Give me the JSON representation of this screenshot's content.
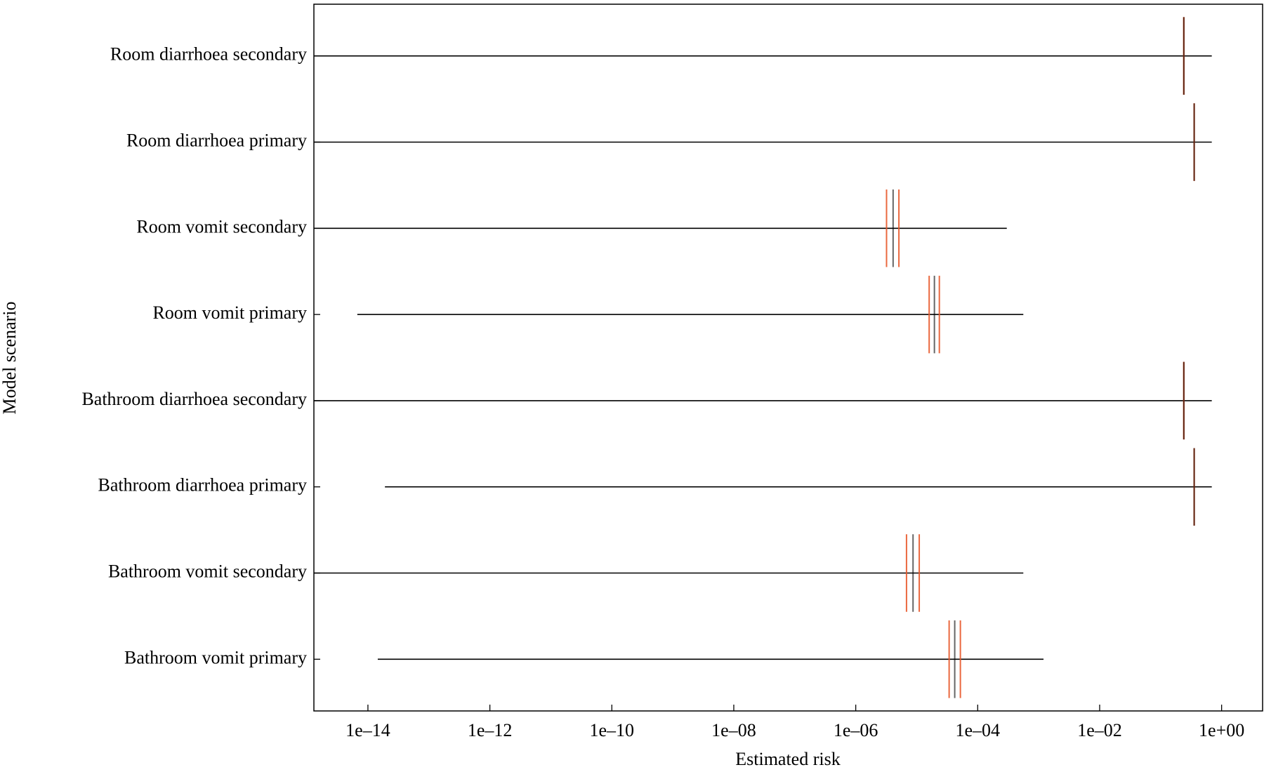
{
  "chart_data": {
    "type": "range",
    "x_label": "Estimated risk",
    "y_label": "Model scenario",
    "x_log": true,
    "xlim": [
      1.3e-15,
      4.7
    ],
    "xticks": [
      {
        "value": 1e-14,
        "label": "1e–14"
      },
      {
        "value": 1e-12,
        "label": "1e–12"
      },
      {
        "value": 1e-10,
        "label": "1e–10"
      },
      {
        "value": 1e-08,
        "label": "1e–08"
      },
      {
        "value": 1e-06,
        "label": "1e–06"
      },
      {
        "value": 0.0001,
        "label": "1e–04"
      },
      {
        "value": 0.01,
        "label": "1e–02"
      },
      {
        "value": 1,
        "label": "1e+00"
      }
    ],
    "categories": [
      "Room diarrhoea secondary",
      "Room diarrhoea primary",
      "Room vomit secondary",
      "Room vomit primary",
      "Bathroom diarrhoea secondary",
      "Bathroom diarrhoea primary",
      "Bathroom vomit secondary",
      "Bathroom vomit primary"
    ],
    "min": [
      1e-15,
      1e-15,
      1e-15,
      6.7e-15,
      1e-15,
      1.9e-14,
      1e-15,
      1.45e-14
    ],
    "max": [
      0.69,
      0.69,
      0.0003,
      0.00056,
      0.69,
      0.69,
      0.00056,
      0.0012
    ],
    "lower": [
      0.24,
      0.355,
      3.2e-06,
      1.6e-05,
      0.24,
      0.355,
      6.8e-06,
      3.4e-05
    ],
    "mean": [
      0.24,
      0.355,
      4.1e-06,
      1.95e-05,
      0.24,
      0.355,
      8.7e-06,
      4.2e-05
    ],
    "upper": [
      0.24,
      0.355,
      5.1e-06,
      2.35e-05,
      0.24,
      0.355,
      1.1e-05,
      5.2e-05
    ],
    "range_color": "#000000",
    "mean_color": "#000000",
    "bound_color": "#e8582a"
  }
}
